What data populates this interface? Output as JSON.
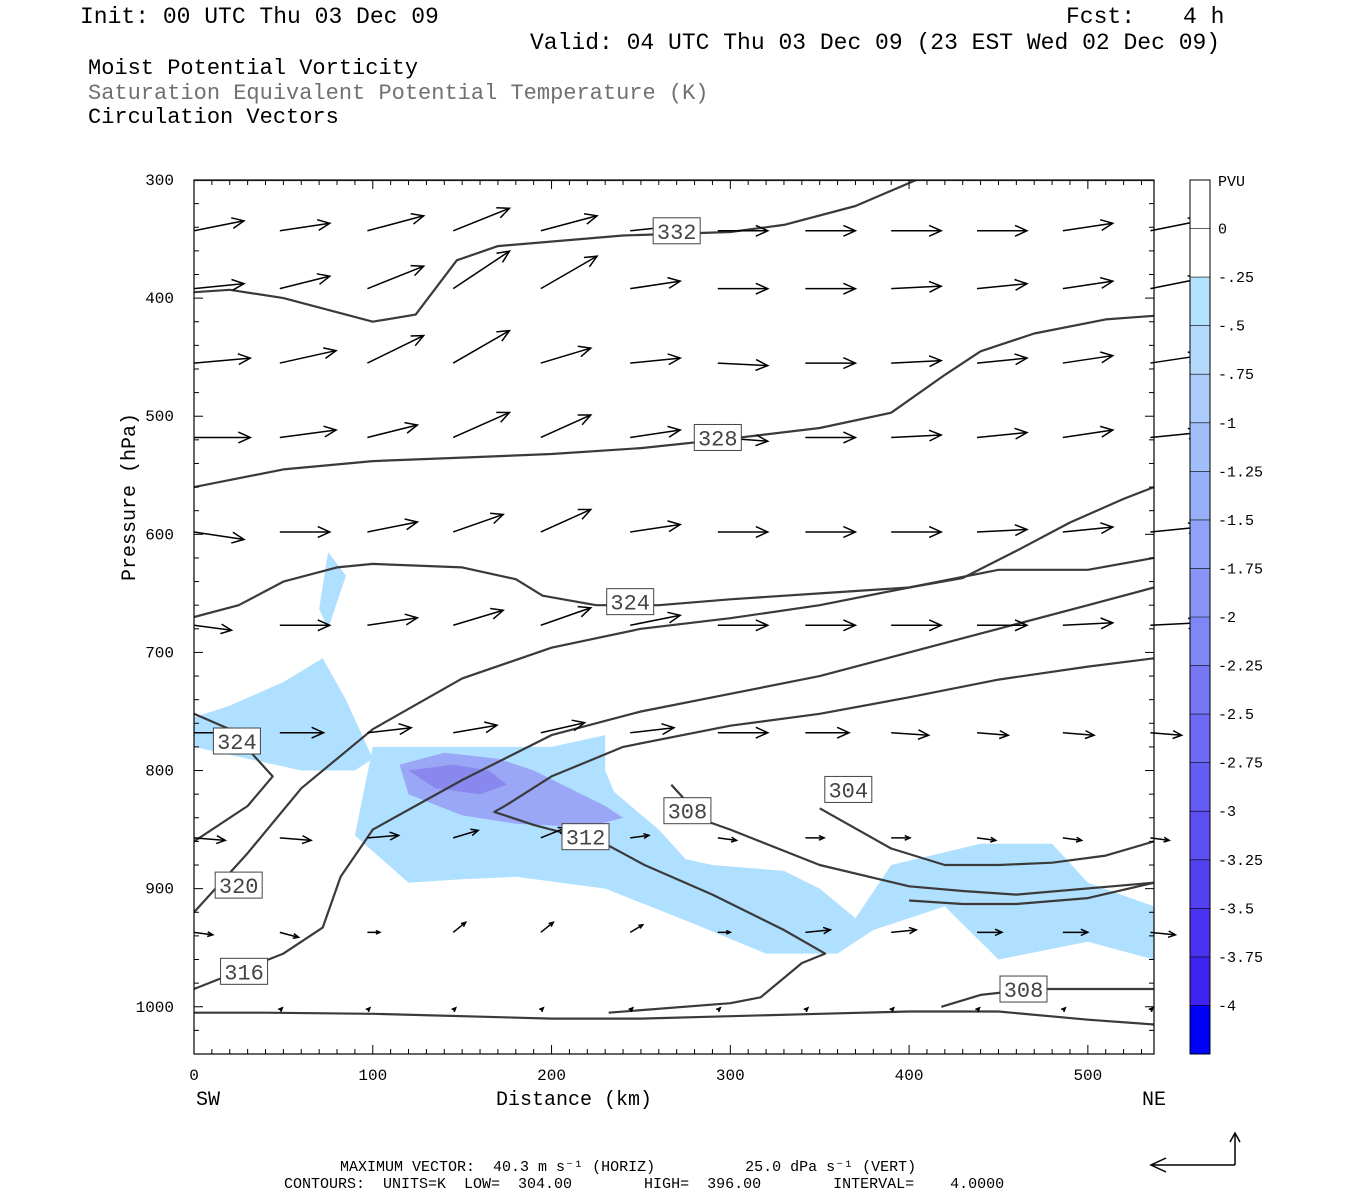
{
  "header": {
    "init": "Init: 00 UTC Thu 03 Dec 09",
    "fcst_label": "Fcst:",
    "fcst_value": "4 h",
    "valid": "Valid: 04 UTC Thu 03 Dec 09 (23 EST Wed 02 Dec 09)"
  },
  "titles": {
    "line1": "Moist Potential Vorticity",
    "line2": "Saturation Equivalent Potential Temperature (K)",
    "line3": "Circulation Vectors"
  },
  "footer": {
    "max_vector": "MAXIMUM VECTOR:  40.3 m s⁻¹ (HORIZ)          25.0 dPa s⁻¹ (VERT)",
    "contours": "CONTOURS:  UNITS=K  LOW=  304.00        HIGH=  396.00        INTERVAL=    4.0000"
  },
  "colors": {
    "contour": "#3a3a3a",
    "vector": "#000000",
    "pv_fill_light": "#b0e0ff",
    "pv_fill_mid": "#9aa6f6",
    "pv_fill_dark": "#8888ee"
  },
  "chart_data": {
    "type": "cross-section",
    "xlabel": "Distance (km)",
    "ylabel": "Pressure (hPa)",
    "xlim": [
      0,
      537
    ],
    "ylim": [
      1040,
      300
    ],
    "x_ticks": [
      0,
      100,
      200,
      300,
      400,
      500
    ],
    "y_ticks": [
      300,
      400,
      500,
      600,
      700,
      800,
      900,
      1000
    ],
    "x_end_labels": {
      "left": "SW",
      "right": "NE"
    },
    "colorbar": {
      "title": "PVU",
      "labels": [
        "0",
        "-.25",
        "-.5",
        "-.75",
        "-1",
        "-1.25",
        "-1.5",
        "-1.75",
        "-2",
        "-2.25",
        "-2.5",
        "-2.75",
        "-3",
        "-3.25",
        "-3.5",
        "-3.75",
        "-4"
      ],
      "colors": [
        "#ffffff",
        "#ffffff",
        "#b3e2ff",
        "#b3d9fc",
        "#aacbfb",
        "#a1befa",
        "#98b0f9",
        "#8fa2f8",
        "#8894f7",
        "#7f86f6",
        "#7678f5",
        "#6d6af5",
        "#645cf4",
        "#5b4ef3",
        "#5240f2",
        "#4932f1",
        "#3f24f0",
        "#0000ff"
      ]
    },
    "contour_labels": [
      {
        "text": "332",
        "x": 270,
        "p": 343
      },
      {
        "text": "328",
        "x": 293,
        "p": 518
      },
      {
        "text": "324",
        "x": 244,
        "p": 657
      },
      {
        "text": "324",
        "x": 24,
        "p": 775
      },
      {
        "text": "320",
        "x": 25,
        "p": 897
      },
      {
        "text": "316",
        "x": 28,
        "p": 970
      },
      {
        "text": "312",
        "x": 219,
        "p": 856
      },
      {
        "text": "308",
        "x": 276,
        "p": 834
      },
      {
        "text": "304",
        "x": 366,
        "p": 816
      },
      {
        "text": "308",
        "x": 464,
        "p": 985
      }
    ],
    "contours": [
      {
        "x": [
          0,
          20,
          50,
          100,
          124,
          147,
          170,
          240,
          300,
          330,
          370,
          404
        ],
        "p": [
          395,
          393,
          400,
          420,
          414,
          368,
          356,
          347,
          344,
          338,
          322,
          300
        ]
      },
      {
        "x": [
          0,
          50,
          100,
          150,
          200,
          250,
          300,
          350,
          390,
          420,
          440,
          470,
          510,
          537
        ],
        "p": [
          560,
          545,
          538,
          535,
          532,
          527,
          519,
          510,
          497,
          465,
          445,
          430,
          418,
          415
        ]
      },
      {
        "x": [
          0,
          25,
          50,
          80,
          100,
          150,
          180,
          195,
          225,
          260,
          300,
          350,
          400,
          430,
          460,
          490,
          520,
          537
        ],
        "p": [
          670,
          660,
          640,
          628,
          625,
          628,
          638,
          652,
          660,
          660,
          655,
          650,
          645,
          637,
          614,
          590,
          570,
          560
        ]
      },
      {
        "x": [
          0,
          30,
          60,
          100,
          150,
          200,
          250,
          300,
          350,
          400,
          450,
          500,
          537
        ],
        "p": [
          920,
          870,
          815,
          765,
          722,
          696,
          680,
          671,
          660,
          645,
          630,
          630,
          620
        ]
      },
      {
        "x": [
          0,
          50,
          72,
          82,
          100,
          150,
          200,
          250,
          300,
          350,
          400,
          450,
          500,
          537
        ],
        "p": [
          985,
          955,
          933,
          890,
          850,
          808,
          770,
          750,
          735,
          720,
          700,
          680,
          660,
          645
        ]
      },
      {
        "x": [
          0,
          40,
          100,
          200,
          250,
          300,
          350,
          400,
          450,
          500,
          537
        ],
        "p": [
          1005,
          1005,
          1006,
          1010,
          1010,
          1008,
          1006,
          1004,
          1004,
          1011,
          1015
        ]
      },
      {
        "x": [
          232,
          300,
          317,
          340,
          353,
          330,
          290,
          252,
          230,
          190,
          168,
          175,
          200,
          240,
          300,
          350,
          400,
          450,
          500,
          537
        ],
        "p": [
          1005,
          997,
          992,
          963,
          955,
          935,
          905,
          880,
          862,
          846,
          835,
          829,
          805,
          780,
          762,
          752,
          738,
          723,
          712,
          705
        ]
      },
      {
        "x": [
          267,
          285,
          300,
          350,
          400,
          430,
          460,
          537
        ],
        "p": [
          812,
          842,
          850,
          880,
          898,
          902,
          905,
          895
        ]
      },
      {
        "x": [
          350,
          390,
          420,
          450,
          480,
          510,
          537
        ],
        "p": [
          832,
          866,
          880,
          880,
          878,
          872,
          860
        ]
      },
      {
        "x": [
          400,
          430,
          460,
          500,
          537
        ],
        "p": [
          910,
          913,
          913,
          908,
          895
        ]
      },
      {
        "x": [
          418,
          440,
          470,
          537
        ],
        "p": [
          1000,
          990,
          985,
          985
        ]
      },
      {
        "x": [
          0,
          20,
          44,
          30,
          0
        ],
        "p": [
          752,
          765,
          805,
          830,
          860
        ]
      },
      {
        "x": [
          0,
          537
        ],
        "p": [
          300,
          300
        ]
      }
    ],
    "pv_regions": [
      {
        "level": "light",
        "x": [
          0,
          20,
          50,
          72,
          85,
          100,
          90,
          60,
          30,
          0
        ],
        "p": [
          755,
          745,
          725,
          705,
          740,
          790,
          800,
          800,
          790,
          780
        ]
      },
      {
        "level": "light",
        "x": [
          70,
          75,
          85,
          75
        ],
        "p": [
          663,
          615,
          635,
          680
        ]
      },
      {
        "level": "light",
        "x": [
          100,
          200,
          230,
          230,
          235,
          260,
          275,
          290,
          330,
          350,
          370,
          390,
          440,
          480,
          500,
          537,
          537,
          500,
          450,
          420,
          400,
          380,
          360,
          320,
          280,
          230,
          180,
          150,
          120,
          90
        ],
        "p": [
          780,
          780,
          770,
          800,
          818,
          850,
          875,
          880,
          885,
          900,
          925,
          880,
          862,
          862,
          895,
          915,
          960,
          945,
          960,
          915,
          925,
          935,
          955,
          955,
          930,
          900,
          890,
          892,
          895,
          855
        ]
      },
      {
        "level": "mid",
        "x": [
          115,
          140,
          170,
          190,
          230,
          240,
          220,
          180,
          150,
          120
        ],
        "p": [
          795,
          785,
          790,
          800,
          830,
          840,
          848,
          845,
          838,
          820
        ]
      },
      {
        "level": "dark",
        "x": [
          120,
          145,
          165,
          175,
          160,
          135
        ],
        "p": [
          800,
          795,
          800,
          812,
          820,
          815
        ]
      }
    ],
    "vectors": [
      {
        "x": [
          0,
          48,
          97,
          145,
          194,
          244,
          293,
          342,
          390,
          438,
          486,
          535
        ],
        "p": 343,
        "u": [
          40,
          40,
          45,
          45,
          45,
          40,
          40,
          40,
          40,
          40,
          40,
          40
        ],
        "w": [
          8,
          6,
          12,
          18,
          12,
          4,
          0,
          0,
          0,
          0,
          6,
          8
        ]
      },
      {
        "x": [
          0,
          48,
          97,
          145,
          194,
          244,
          293,
          342,
          390,
          438,
          486,
          535
        ],
        "p": 392,
        "u": [
          40,
          40,
          45,
          45,
          45,
          40,
          40,
          40,
          40,
          40,
          40,
          40
        ],
        "w": [
          4,
          10,
          18,
          30,
          26,
          6,
          0,
          0,
          2,
          4,
          6,
          8
        ]
      },
      {
        "x": [
          0,
          48,
          97,
          145,
          194,
          244,
          293,
          342,
          390,
          438,
          486,
          535
        ],
        "p": 455,
        "u": [
          45,
          45,
          45,
          45,
          40,
          40,
          40,
          40,
          40,
          40,
          40,
          40
        ],
        "w": [
          4,
          10,
          22,
          26,
          12,
          4,
          -2,
          0,
          2,
          4,
          6,
          6
        ]
      },
      {
        "x": [
          0,
          48,
          97,
          145,
          194,
          244,
          293,
          342,
          390,
          438,
          486,
          535
        ],
        "p": 518,
        "u": [
          45,
          45,
          40,
          45,
          40,
          40,
          40,
          40,
          40,
          40,
          40,
          40
        ],
        "w": [
          0,
          6,
          10,
          20,
          18,
          6,
          -3,
          0,
          2,
          4,
          6,
          4
        ]
      },
      {
        "x": [
          0,
          48,
          97,
          145,
          194,
          244,
          293,
          342,
          390,
          438,
          486,
          535
        ],
        "p": 598,
        "u": [
          40,
          40,
          40,
          40,
          40,
          40,
          40,
          40,
          40,
          40,
          40,
          40
        ],
        "w": [
          -6,
          0,
          8,
          14,
          18,
          6,
          0,
          0,
          0,
          2,
          4,
          4
        ]
      },
      {
        "x": [
          0,
          48,
          97,
          145,
          194,
          244,
          293,
          342,
          390,
          438,
          486,
          535
        ],
        "p": 677,
        "u": [
          30,
          40,
          40,
          40,
          40,
          40,
          40,
          40,
          40,
          40,
          40,
          40
        ],
        "w": [
          -4,
          0,
          6,
          12,
          14,
          8,
          0,
          0,
          0,
          0,
          2,
          2
        ]
      },
      {
        "x": [
          0,
          48,
          97,
          145,
          194,
          244,
          293,
          342,
          390,
          438,
          486,
          535
        ],
        "p": 768,
        "u": [
          30,
          35,
          35,
          35,
          35,
          35,
          40,
          35,
          30,
          25,
          25,
          25
        ],
        "w": [
          0,
          0,
          4,
          6,
          8,
          4,
          0,
          0,
          -2,
          -2,
          -2,
          -2
        ]
      },
      {
        "x": [
          0,
          48,
          97,
          145,
          194,
          244,
          293,
          342,
          390,
          438,
          486,
          535
        ],
        "p": 857,
        "u": [
          25,
          25,
          25,
          20,
          20,
          15,
          15,
          15,
          15,
          15,
          15,
          15
        ],
        "w": [
          -2,
          -2,
          2,
          6,
          8,
          2,
          -2,
          0,
          0,
          -2,
          -2,
          -2
        ]
      },
      {
        "x": [
          0,
          48,
          97,
          145,
          194,
          244,
          293,
          342,
          390,
          438,
          486,
          535
        ],
        "p": 937,
        "u": [
          15,
          15,
          10,
          10,
          10,
          10,
          10,
          20,
          20,
          20,
          20,
          20
        ],
        "w": [
          -2,
          -4,
          0,
          8,
          8,
          6,
          0,
          2,
          2,
          0,
          0,
          -2
        ]
      },
      {
        "x": [
          48,
          97,
          145,
          194,
          244,
          293,
          342,
          390,
          438,
          486,
          535
        ],
        "p": 1003,
        "u": [
          2,
          2,
          2,
          2,
          2,
          2,
          2,
          2,
          2,
          2,
          2
        ],
        "w": [
          2,
          2,
          2,
          2,
          2,
          2,
          2,
          2,
          2,
          2,
          2
        ]
      }
    ]
  }
}
